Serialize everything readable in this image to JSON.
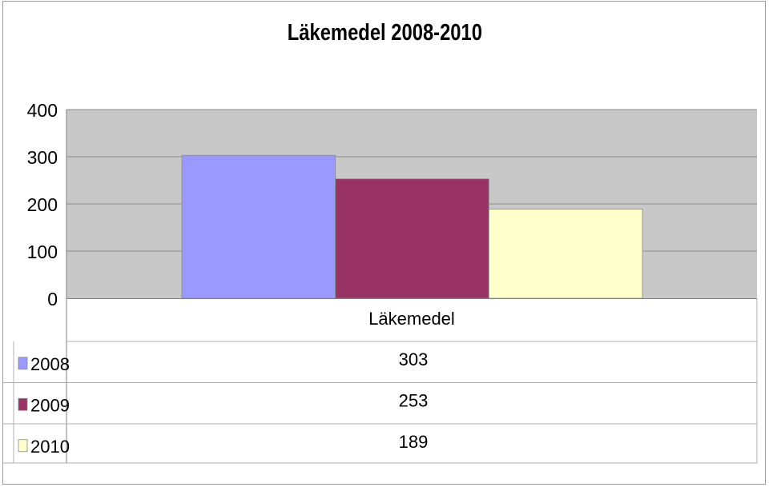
{
  "chart_data": {
    "type": "bar",
    "title": "Läkemedel 2008-2010",
    "categories": [
      "Läkemedel"
    ],
    "series": [
      {
        "name": "2008",
        "values": [
          303
        ],
        "color": "#9999ff"
      },
      {
        "name": "2009",
        "values": [
          253
        ],
        "color": "#993366"
      },
      {
        "name": "2010",
        "values": [
          189
        ],
        "color": "#ffffcc"
      }
    ],
    "ylim": [
      0,
      400
    ],
    "yticks": [
      "0",
      "100",
      "200",
      "300",
      "400"
    ],
    "grid": true,
    "plot_background": "#c0c0c0",
    "data_table": true,
    "data_table_values": [
      "303",
      "253",
      "189"
    ]
  }
}
